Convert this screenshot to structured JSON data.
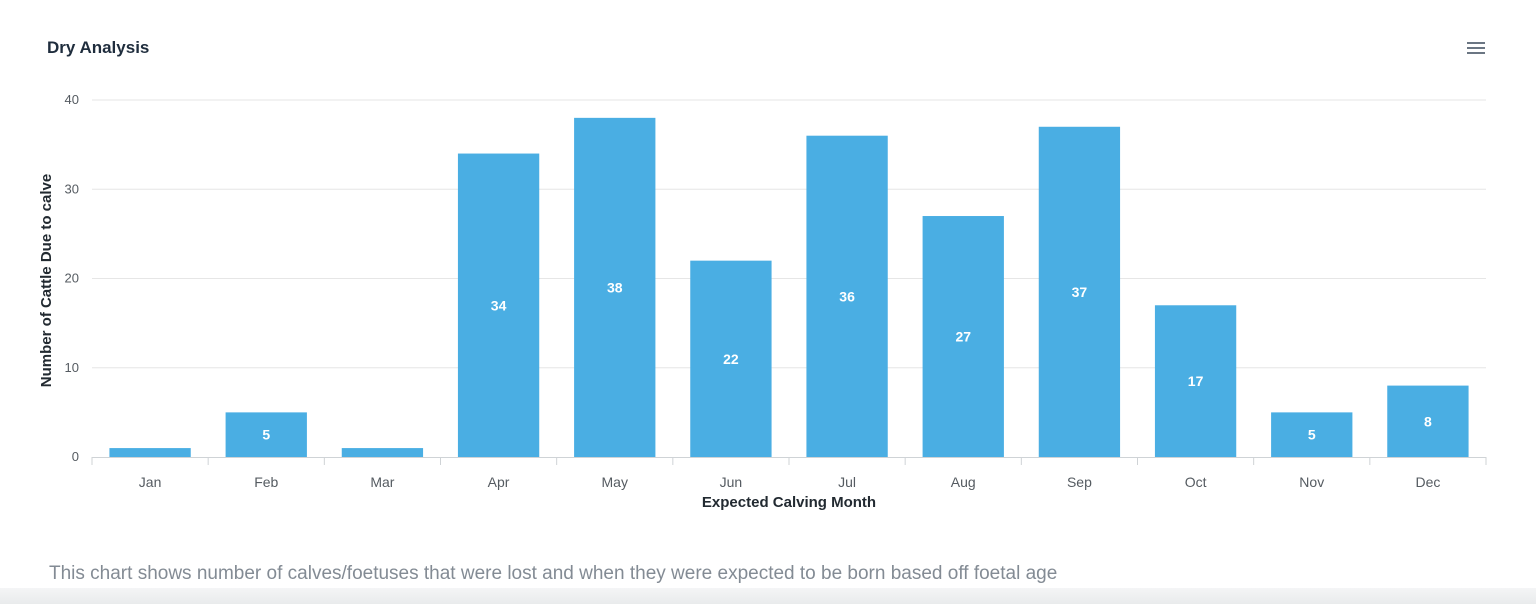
{
  "header": {
    "title": "Dry Analysis",
    "menu_icon": "hamburger-menu-icon"
  },
  "chart_data": {
    "type": "bar",
    "title": "Dry Analysis",
    "xlabel": "Expected Calving Month",
    "ylabel": "Number of Cattle Due to calve",
    "categories": [
      "Jan",
      "Feb",
      "Mar",
      "Apr",
      "May",
      "Jun",
      "Jul",
      "Aug",
      "Sep",
      "Oct",
      "Nov",
      "Dec"
    ],
    "series": [
      {
        "values": [
          1,
          5,
          1,
          34,
          38,
          22,
          36,
          27,
          37,
          17,
          5,
          8
        ]
      }
    ],
    "data_labels": [
      "",
      "5",
      "",
      "34",
      "38",
      "22",
      "36",
      "27",
      "37",
      "17",
      "5",
      "8"
    ],
    "ylim": [
      0,
      40
    ],
    "yticks": [
      0,
      10,
      20,
      30,
      40
    ],
    "grid": true,
    "legend": "none",
    "color": "#4aaee3"
  },
  "footer": {
    "caption": "This chart shows number of calves/foetuses that were lost and when they were expected to be born based off foetal age"
  }
}
